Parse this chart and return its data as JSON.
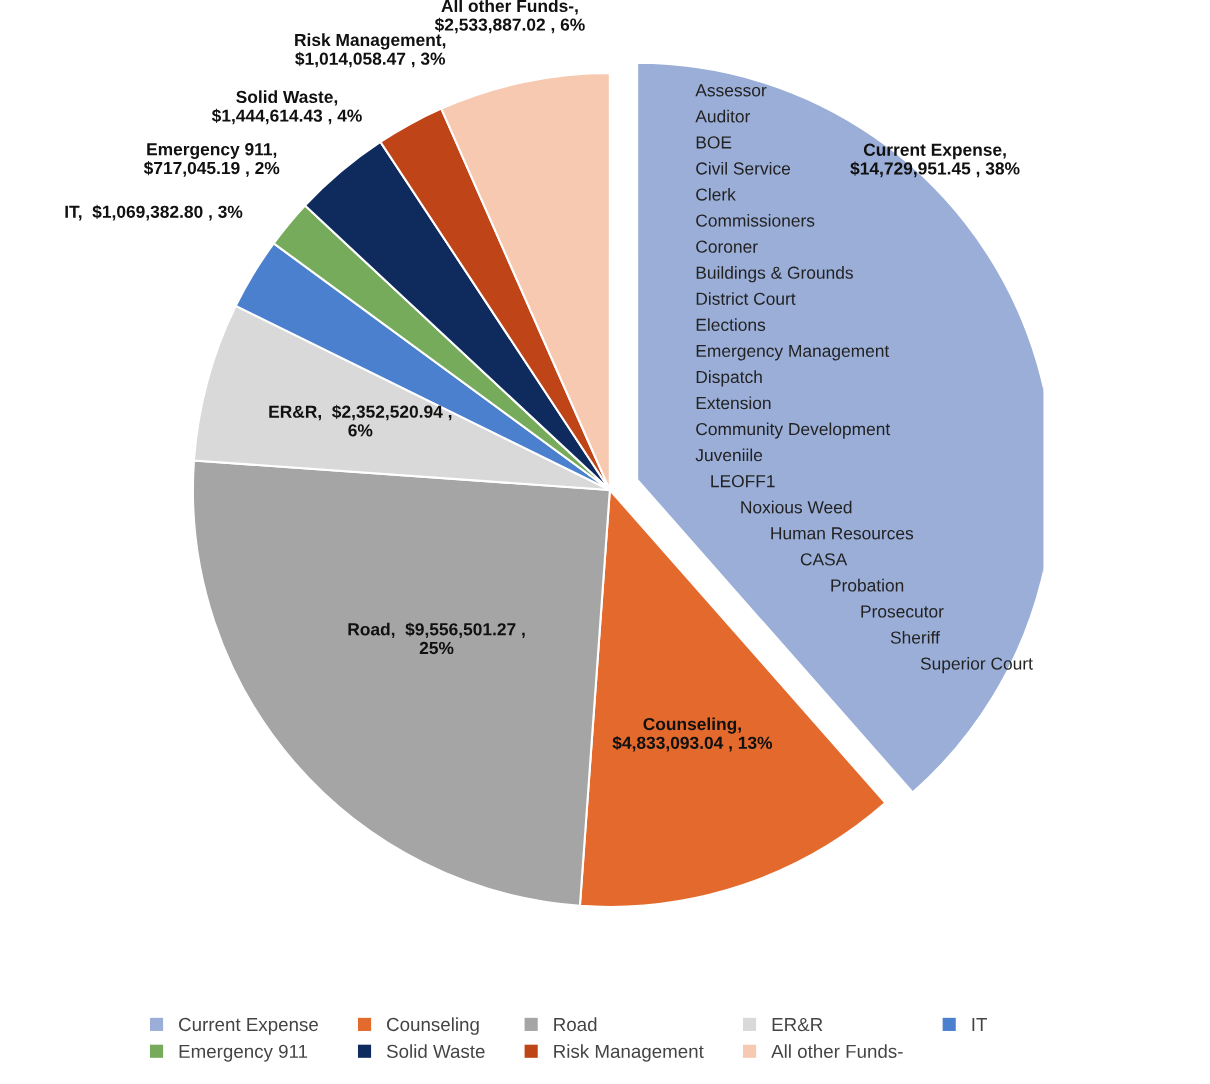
{
  "chart_data": {
    "type": "pie",
    "categories": [
      "Current Expense",
      "Counseling",
      "Road",
      "ER&R",
      "IT",
      "Emergency 911",
      "Solid Waste",
      "Risk Management",
      "All other Funds-"
    ],
    "values": [
      14729951.45,
      4833093.04,
      9556501.27,
      2352520.94,
      1069382.8,
      717045.19,
      1444614.43,
      1014058.47,
      2533887.02
    ],
    "colors": [
      "#9aaed8",
      "#e4692c",
      "#a5a5a5",
      "#d9d9d9",
      "#4b80cf",
      "#76ab5c",
      "#0f2b5e",
      "#bf4418",
      "#f7c9b1"
    ],
    "value_labels": [
      "Current Expense,\n$14,729,951.45 , 38%",
      "Counseling,\n$4,833,093.04 , 13%",
      "Road,  $9,556,501.27 ,\n25%",
      "ER&R,  $2,352,520.94 ,\n6%",
      "IT,  $1,069,382.80 , 3%",
      "Emergency 911,\n$717,045.19 , 2%",
      "Solid Waste,\n$1,444,614.43 , 4%",
      "Risk Management,\n$1,014,058.47 , 3%",
      "All other Funds-,\n$2,533,887.02 , 6%"
    ],
    "annotations": [
      "Assessor",
      "Auditor",
      "BOE",
      "Civil Service",
      "Clerk",
      "Commissioners",
      "Coroner",
      "Buildings & Grounds",
      "District Court",
      "Elections",
      "Emergency Management",
      "Dispatch",
      "Extension",
      "Community Development",
      "Juveniile",
      "LEOFF1",
      "Noxious Weed",
      "Human Resources",
      "CASA",
      "Probation",
      "Prosecutor",
      "Sheriff",
      "Superior Court"
    ],
    "legend": "bottom"
  }
}
